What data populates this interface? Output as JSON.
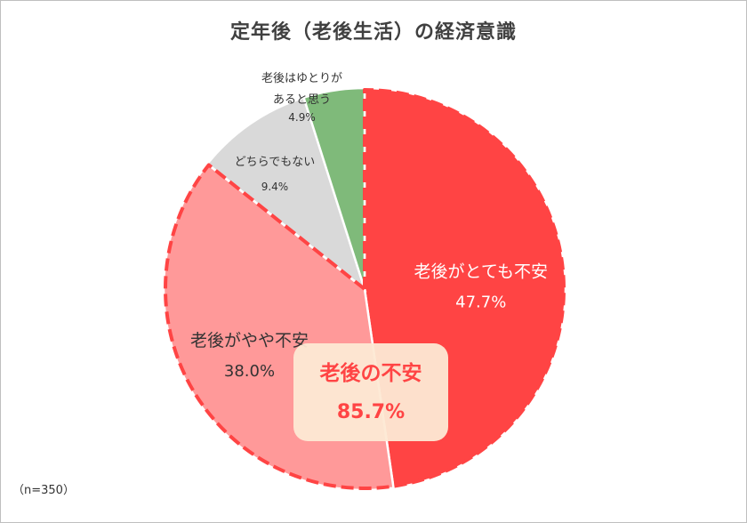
{
  "chart_data": {
    "type": "pie",
    "title": "定年後（老後生活）の経済意識",
    "note": "（n=350）",
    "start_angle_deg": 0,
    "direction": "clockwise",
    "slices": [
      {
        "label": "老後がとても不安",
        "value": 47.7,
        "display": "47.7%",
        "color": "#ff4444"
      },
      {
        "label": "老後がやや不安",
        "value": 38.0,
        "display": "38.0%",
        "color": "#ff9999"
      },
      {
        "label": "どちらでもない",
        "value": 9.4,
        "display": "9.4%",
        "color": "#d9d9d9"
      },
      {
        "label": "老後はゆとりがあると思う",
        "label_lines": [
          "老後はゆとりが",
          "あると思う"
        ],
        "value": 4.9,
        "display": "4.9%",
        "color": "#7fba7a"
      }
    ],
    "group_annotation": {
      "label": "老後の不安",
      "value": 85.7,
      "display": "85.7%",
      "members": [
        "老後がとても不安",
        "老後がやや不安"
      ],
      "text_color": "#ff4444",
      "box_color": "#fde9d4",
      "outline_color": "#ff4444",
      "outline_style": "dashed"
    }
  }
}
